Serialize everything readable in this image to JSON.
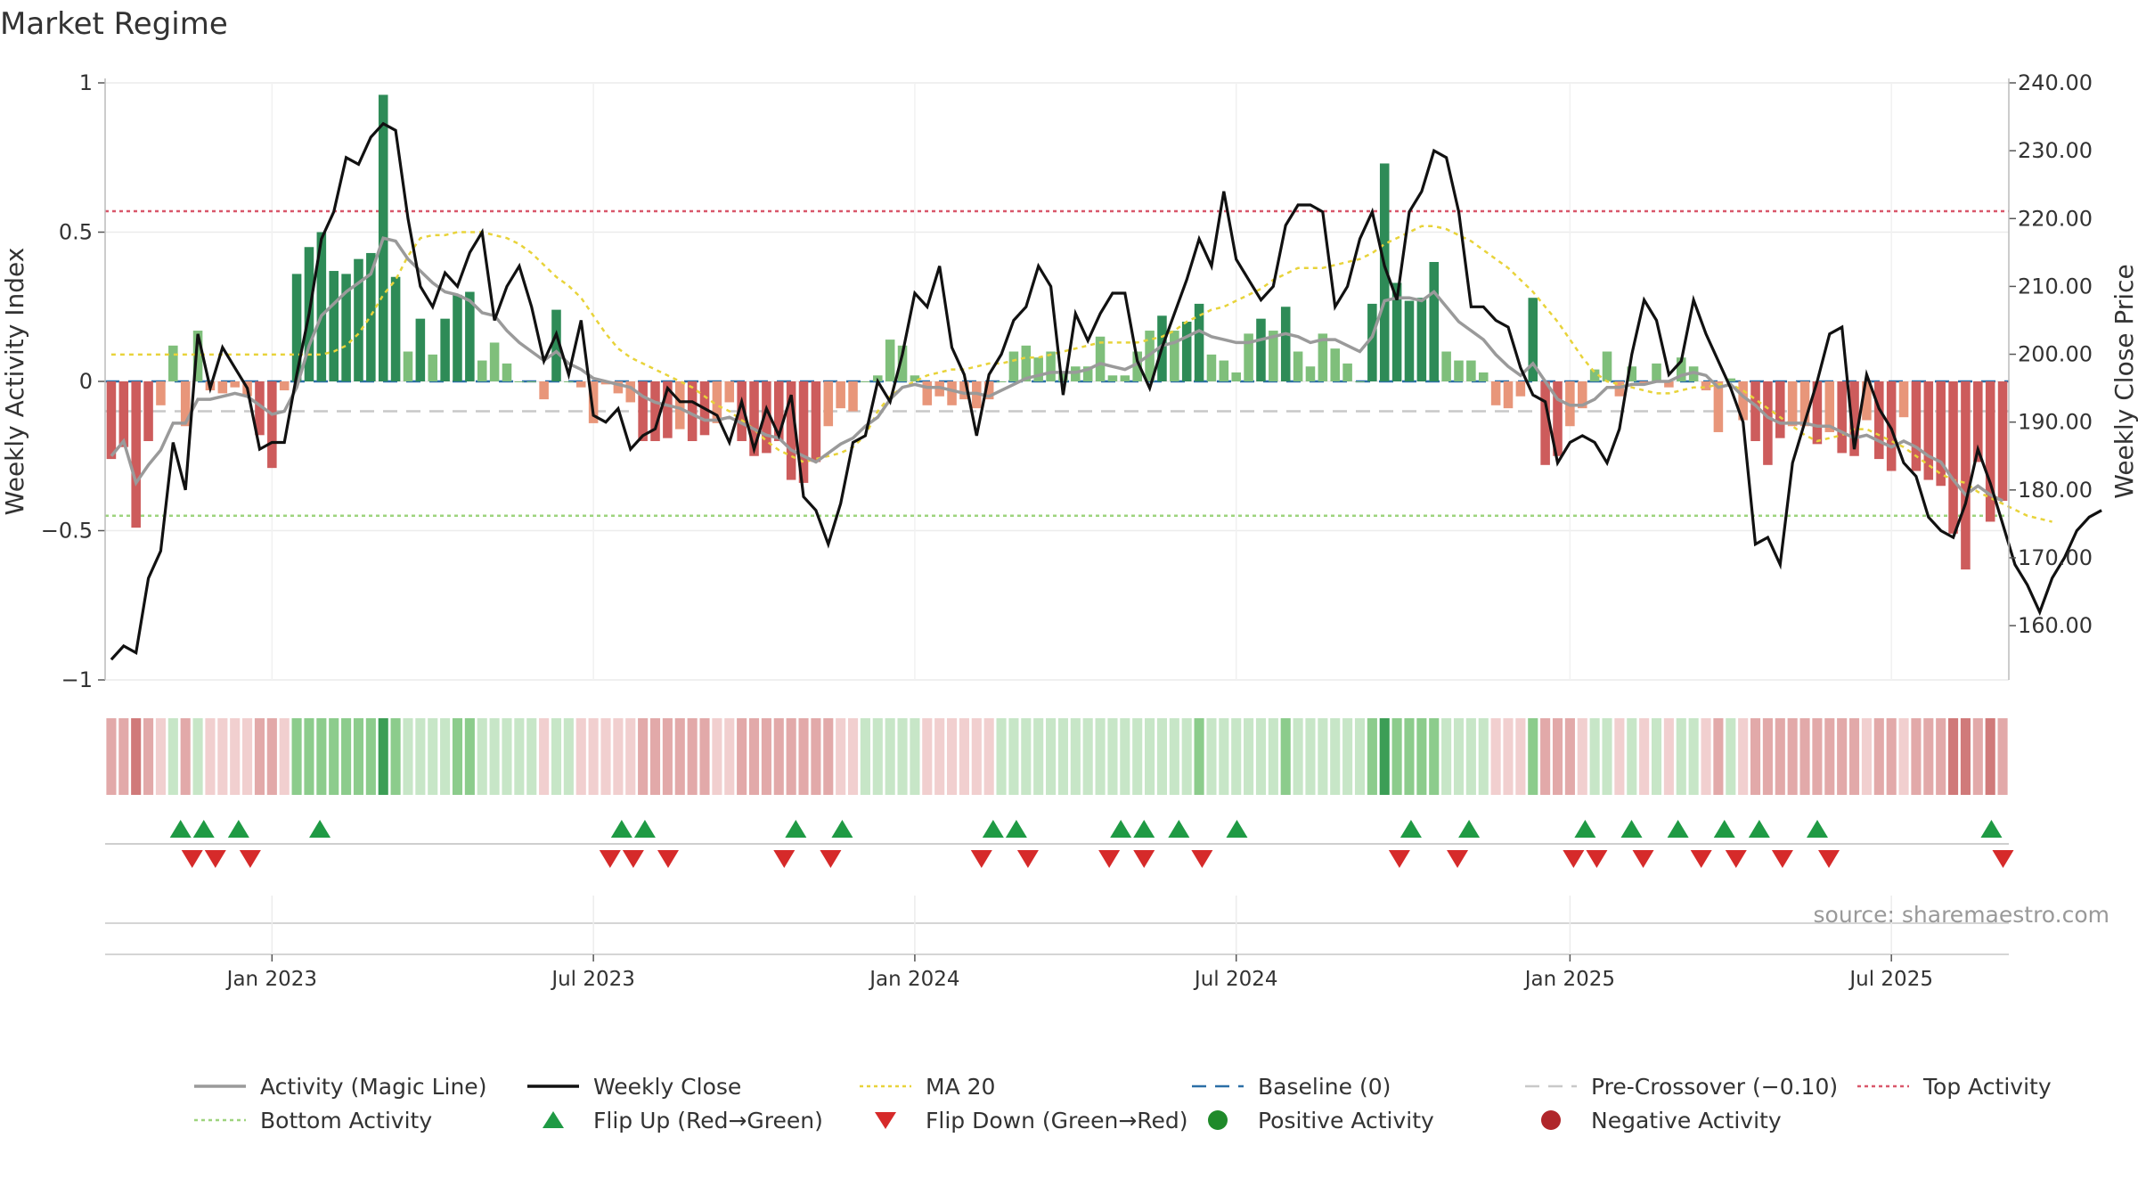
{
  "chart_data": {
    "type": "bar",
    "title": "Market Regime",
    "source": "source: sharemaestro.com",
    "y_left": {
      "label": "Weekly Activity Index",
      "range": [
        -1,
        1
      ],
      "ticks": [
        1,
        0.5,
        0,
        -0.5,
        -1
      ],
      "tick_labels": [
        "1",
        "0.5",
        "0",
        "−0.5",
        "−1"
      ]
    },
    "y_right": {
      "label": "Weekly Close Price",
      "range": [
        152,
        240
      ],
      "ticks": [
        240,
        230,
        220,
        210,
        200,
        190,
        180,
        170,
        160
      ],
      "tick_labels": [
        "240.00",
        "230.00",
        "220.00",
        "210.00",
        "200.00",
        "190.00",
        "180.00",
        "170.00",
        "160.00"
      ]
    },
    "x_axis": {
      "type": "weekly",
      "first_week": "2022-10-03",
      "weeks": 156,
      "ticks": [
        {
          "label": "Jan 2023",
          "week": 13
        },
        {
          "label": "Jul 2023",
          "week": 39
        },
        {
          "label": "Jan 2024",
          "week": 65
        },
        {
          "label": "Jul 2024",
          "week": 91
        },
        {
          "label": "Jan 2025",
          "week": 118
        },
        {
          "label": "Jul 2025",
          "week": 144
        }
      ]
    },
    "reference_lines": {
      "baseline": 0,
      "pre_crossover": -0.1,
      "top_activity": 0.57,
      "bottom_activity": -0.45
    },
    "series": [
      {
        "name": "Weekly Activity Index",
        "values": [
          -0.26,
          -0.22,
          -0.49,
          -0.2,
          -0.08,
          0.12,
          -0.15,
          0.17,
          -0.03,
          -0.04,
          -0.02,
          -0.05,
          -0.18,
          -0.29,
          -0.03,
          0.36,
          0.45,
          0.5,
          0.37,
          0.36,
          0.41,
          0.43,
          0.96,
          0.35,
          0.1,
          0.21,
          0.09,
          0.21,
          0.29,
          0.3,
          0.07,
          0.13,
          0.06,
          0.0,
          0.0,
          -0.06,
          0.24,
          0.0,
          -0.02,
          -0.14,
          -0.01,
          -0.04,
          -0.07,
          -0.2,
          -0.2,
          -0.19,
          -0.16,
          -0.2,
          -0.18,
          -0.14,
          -0.07,
          -0.2,
          -0.25,
          -0.24,
          -0.2,
          -0.33,
          -0.34,
          -0.27,
          -0.15,
          -0.09,
          -0.1,
          0.0,
          0.02,
          0.14,
          0.12,
          0.02,
          -0.08,
          -0.05,
          -0.08,
          -0.06,
          -0.09,
          -0.06,
          0.0,
          0.1,
          0.12,
          0.08,
          0.1,
          0.03,
          0.05,
          0.05,
          0.15,
          0.02,
          0.02,
          0.1,
          0.17,
          0.22,
          0.17,
          0.2,
          0.26,
          0.09,
          0.07,
          0.03,
          0.16,
          0.21,
          0.17,
          0.25,
          0.1,
          0.05,
          0.16,
          0.11,
          0.06,
          0.0,
          0.26,
          0.73,
          0.33,
          0.27,
          0.28,
          0.4,
          0.1,
          0.07,
          0.07,
          0.03,
          -0.08,
          -0.09,
          -0.05,
          0.28,
          -0.28,
          -0.25,
          -0.15,
          -0.09,
          0.04,
          0.1,
          -0.05,
          0.05,
          -0.01,
          0.06,
          -0.02,
          0.08,
          0.05,
          -0.03,
          -0.17,
          0.01,
          -0.13,
          -0.2,
          -0.28,
          -0.19,
          -0.15,
          -0.15,
          -0.21,
          -0.17,
          -0.24,
          -0.25,
          -0.13,
          -0.26,
          -0.3,
          -0.12,
          -0.3,
          -0.33,
          -0.35,
          -0.51,
          -0.63,
          -0.27,
          -0.47,
          -0.4
        ]
      },
      {
        "name": "Activity (Magic Line)",
        "values": [
          -0.25,
          -0.2,
          -0.34,
          -0.28,
          -0.23,
          -0.14,
          -0.14,
          -0.06,
          -0.06,
          -0.05,
          -0.04,
          -0.05,
          -0.08,
          -0.11,
          -0.1,
          -0.02,
          0.12,
          0.22,
          0.26,
          0.3,
          0.33,
          0.36,
          0.48,
          0.47,
          0.41,
          0.37,
          0.33,
          0.3,
          0.29,
          0.27,
          0.23,
          0.22,
          0.17,
          0.13,
          0.1,
          0.07,
          0.1,
          0.06,
          0.04,
          0.01,
          0.0,
          -0.01,
          -0.02,
          -0.05,
          -0.07,
          -0.08,
          -0.09,
          -0.11,
          -0.13,
          -0.13,
          -0.12,
          -0.14,
          -0.16,
          -0.18,
          -0.19,
          -0.23,
          -0.25,
          -0.27,
          -0.24,
          -0.21,
          -0.19,
          -0.15,
          -0.12,
          -0.06,
          -0.02,
          -0.01,
          -0.02,
          -0.02,
          -0.03,
          -0.04,
          -0.04,
          -0.05,
          -0.03,
          -0.01,
          0.01,
          0.02,
          0.03,
          0.03,
          0.03,
          0.04,
          0.06,
          0.05,
          0.04,
          0.06,
          0.09,
          0.12,
          0.13,
          0.15,
          0.17,
          0.15,
          0.14,
          0.13,
          0.13,
          0.14,
          0.15,
          0.16,
          0.15,
          0.13,
          0.14,
          0.14,
          0.12,
          0.1,
          0.15,
          0.27,
          0.28,
          0.28,
          0.27,
          0.3,
          0.25,
          0.2,
          0.17,
          0.14,
          0.09,
          0.05,
          0.02,
          0.06,
          0.0,
          -0.06,
          -0.08,
          -0.08,
          -0.06,
          -0.02,
          -0.02,
          -0.01,
          -0.01,
          0.0,
          0.0,
          0.02,
          0.03,
          0.02,
          -0.02,
          -0.01,
          -0.05,
          -0.08,
          -0.12,
          -0.14,
          -0.14,
          -0.14,
          -0.15,
          -0.15,
          -0.17,
          -0.19,
          -0.18,
          -0.2,
          -0.22,
          -0.2,
          -0.22,
          -0.25,
          -0.27,
          -0.33,
          -0.38,
          -0.35,
          -0.38,
          -0.4
        ]
      },
      {
        "name": "Weekly Close",
        "values": [
          155,
          157,
          156,
          167,
          171,
          187,
          180,
          203,
          195,
          201,
          198,
          195,
          186,
          187,
          187,
          197,
          206,
          217,
          221,
          229,
          228,
          232,
          234,
          233,
          220,
          210,
          207,
          212,
          210,
          215,
          218,
          205,
          210,
          213,
          207,
          199,
          203,
          197,
          205,
          191,
          190,
          192,
          186,
          188,
          189,
          195,
          193,
          193,
          192,
          191,
          187,
          193,
          186,
          192,
          188,
          194,
          179,
          177,
          172,
          178,
          187,
          188,
          196,
          193,
          200,
          209,
          207,
          213,
          201,
          197,
          188,
          197,
          200,
          205,
          207,
          213,
          210,
          194,
          206,
          202,
          206,
          209,
          209,
          199,
          195,
          201,
          206,
          211,
          217,
          213,
          224,
          214,
          211,
          208,
          210,
          219,
          222,
          222,
          221,
          207,
          210,
          217,
          221,
          213,
          208,
          221,
          224,
          230,
          229,
          221,
          207,
          207,
          205,
          204,
          198,
          194,
          193,
          184,
          187,
          188,
          187,
          184,
          189,
          200,
          208,
          205,
          197,
          199,
          208,
          203,
          199,
          195,
          190,
          172,
          173,
          169,
          184,
          190,
          196,
          203,
          204,
          186,
          197,
          192,
          189,
          184,
          182,
          176,
          174,
          173,
          178,
          186,
          181,
          175,
          169,
          166,
          162,
          167,
          170,
          174,
          176,
          177
        ]
      },
      {
        "name": "MA 20",
        "values": [
          0.09,
          0.09,
          0.09,
          0.09,
          0.09,
          0.09,
          0.09,
          0.09,
          0.09,
          0.09,
          0.09,
          0.09,
          0.09,
          0.09,
          0.09,
          0.09,
          0.09,
          0.09,
          0.1,
          0.12,
          0.16,
          0.22,
          0.29,
          0.34,
          0.42,
          0.48,
          0.49,
          0.49,
          0.5,
          0.5,
          0.5,
          0.49,
          0.48,
          0.46,
          0.43,
          0.39,
          0.35,
          0.32,
          0.28,
          0.22,
          0.16,
          0.11,
          0.08,
          0.06,
          0.04,
          0.02,
          0.0,
          -0.02,
          -0.05,
          -0.08,
          -0.1,
          -0.13,
          -0.16,
          -0.2,
          -0.23,
          -0.25,
          -0.27,
          -0.26,
          -0.25,
          -0.24,
          -0.22,
          -0.18,
          -0.1,
          -0.05,
          -0.02,
          0.0,
          0.02,
          0.03,
          0.04,
          0.04,
          0.05,
          0.06,
          0.06,
          0.07,
          0.08,
          0.08,
          0.09,
          0.1,
          0.11,
          0.12,
          0.13,
          0.13,
          0.13,
          0.13,
          0.14,
          0.15,
          0.17,
          0.2,
          0.22,
          0.24,
          0.25,
          0.27,
          0.29,
          0.31,
          0.34,
          0.36,
          0.38,
          0.38,
          0.38,
          0.39,
          0.4,
          0.41,
          0.43,
          0.46,
          0.48,
          0.5,
          0.52,
          0.52,
          0.51,
          0.49,
          0.47,
          0.44,
          0.41,
          0.38,
          0.34,
          0.3,
          0.25,
          0.2,
          0.14,
          0.08,
          0.03,
          0.0,
          -0.01,
          -0.02,
          -0.03,
          -0.04,
          -0.04,
          -0.03,
          -0.02,
          -0.02,
          -0.01,
          -0.01,
          -0.03,
          -0.06,
          -0.09,
          -0.12,
          -0.15,
          -0.18,
          -0.2,
          -0.19,
          -0.18,
          -0.16,
          -0.16,
          -0.18,
          -0.2,
          -0.22,
          -0.25,
          -0.28,
          -0.31,
          -0.33,
          -0.34,
          -0.37,
          -0.39,
          -0.41,
          -0.43,
          -0.45,
          -0.46,
          -0.47
        ]
      }
    ],
    "flip_up_weeks": [
      6,
      8,
      11,
      18,
      44,
      46,
      59,
      63,
      76,
      78,
      87,
      89,
      92,
      97,
      112,
      117,
      127,
      131,
      135,
      139,
      142,
      147,
      162
    ],
    "flip_down_weeks": [
      7,
      9,
      12,
      43,
      45,
      48,
      58,
      62,
      75,
      79,
      86,
      89,
      94,
      111,
      116,
      126,
      128,
      132,
      137,
      140,
      144,
      148,
      163
    ],
    "legend": {
      "position": "bottom",
      "entries": [
        {
          "label": "Activity (Magic Line)",
          "symbol": "line",
          "color": "#9a9a9a"
        },
        {
          "label": "Weekly Close",
          "symbol": "line",
          "color": "#111111"
        },
        {
          "label": "MA 20",
          "symbol": "dotted",
          "color": "#e8d33a"
        },
        {
          "label": "Baseline (0)",
          "symbol": "dashed",
          "color": "#2b6fa6"
        },
        {
          "label": "Pre-Crossover (−0.10)",
          "symbol": "dashed",
          "color": "#c8c8c8"
        },
        {
          "label": "Top Activity",
          "symbol": "dotted",
          "color": "#d9576a"
        },
        {
          "label": "Bottom Activity",
          "symbol": "dotted",
          "color": "#9ed47e"
        },
        {
          "label": "Flip Up (Red→Green)",
          "symbol": "triangle-up",
          "color": "#1f9a44"
        },
        {
          "label": "Flip Down (Green→Red)",
          "symbol": "triangle-down",
          "color": "#d62a2a"
        },
        {
          "label": "Positive Activity",
          "symbol": "circle",
          "color": "#1f8a2a"
        },
        {
          "label": "Negative Activity",
          "symbol": "circle",
          "color": "#b0262a"
        }
      ]
    },
    "grid": true,
    "colors": {
      "strong_green": "#2e8b57",
      "light_green": "#7fbf7b",
      "strong_red": "#cd5c5c",
      "light_red": "#e8967a"
    }
  }
}
